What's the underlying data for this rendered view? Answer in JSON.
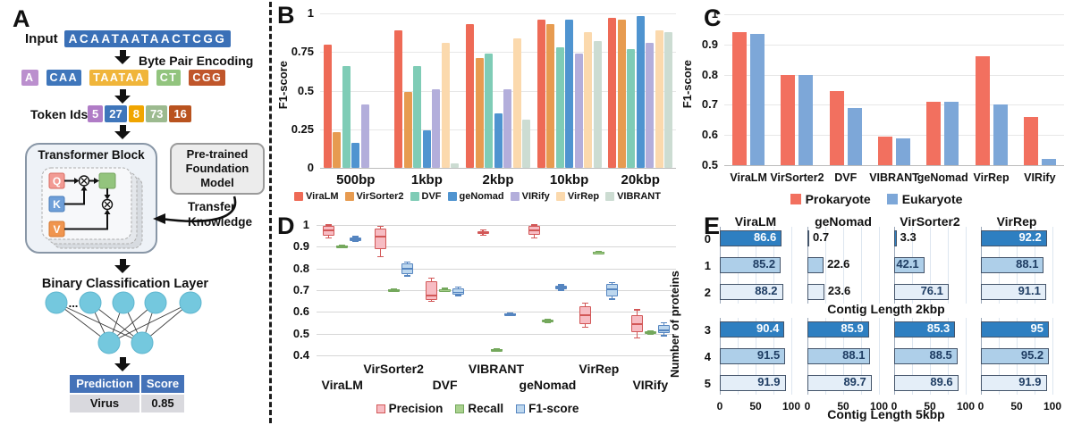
{
  "figure": {
    "background": "#ffffff",
    "panels": {
      "a": "A",
      "b": "B",
      "c": "C",
      "d": "D",
      "e": "E"
    }
  },
  "panelA": {
    "input_label": "Input",
    "input_sequence": "ACAATAATAACTCGG",
    "input_box_color": "#3a70b7",
    "bpe_label": "Byte Pair Encoding",
    "tokens": [
      {
        "text": "A",
        "color": "#bb8fce"
      },
      {
        "text": "CAA",
        "color": "#3f76bb"
      },
      {
        "text": "TAATAA",
        "color": "#f0b53a"
      },
      {
        "text": "CT",
        "color": "#92c47e"
      },
      {
        "text": "CGG",
        "color": "#c0562b"
      }
    ],
    "token_ids_label": "Token Ids",
    "token_ids": [
      {
        "text": "5",
        "color": "#b07cc6"
      },
      {
        "text": "27",
        "color": "#3f76bb"
      },
      {
        "text": "8",
        "color": "#f0a500"
      },
      {
        "text": "73",
        "color": "#9cba8f"
      },
      {
        "text": "16",
        "color": "#b9531f"
      }
    ],
    "transformer_title": "Transformer Block",
    "qkv": [
      {
        "text": "Q",
        "color": "#f29b94",
        "stroke": "#d96c62"
      },
      {
        "text": "K",
        "color": "#6f9fd8",
        "stroke": "#4a7ebb"
      },
      {
        "text": "V",
        "color": "#f0954f",
        "stroke": "#d47830"
      }
    ],
    "attention_node_color": "#93c47d",
    "attention_node_stroke": "#76a35e",
    "pretrained_label_lines": [
      "Pre-trained",
      "Foundation",
      "Model"
    ],
    "transfer_label_lines": [
      "Transfer",
      "Knowledge"
    ],
    "classifier_label": "Binary Classification Layer",
    "ellipsis": "...",
    "neuron_color": "#74c8de",
    "neuron_stroke": "#5fb6cf",
    "prediction_table": {
      "headers": [
        "Prediction",
        "Score"
      ],
      "row": [
        "Virus",
        "0.85"
      ],
      "header_color": "#4472b8",
      "row_color": "#d9d9de"
    }
  },
  "chart_data": [
    {
      "id": "panelB",
      "type": "bar",
      "title": "",
      "xlabel": "",
      "ylabel": "F1-score",
      "ylim": [
        0,
        1
      ],
      "yticks": [
        1,
        0.75,
        0.5,
        0.25,
        0
      ],
      "grid": true,
      "legend_position": "bottom",
      "categories": [
        "500bp",
        "1kbp",
        "2kbp",
        "10kbp",
        "20kbp"
      ],
      "series": [
        {
          "name": "ViraLM",
          "color": "#ee6a56",
          "values": [
            0.8,
            0.89,
            0.93,
            0.96,
            0.97
          ]
        },
        {
          "name": "VirSorter2",
          "color": "#e79b50",
          "values": [
            0.23,
            0.49,
            0.71,
            0.93,
            0.96
          ]
        },
        {
          "name": "DVF",
          "color": "#7fccb6",
          "values": [
            0.66,
            0.66,
            0.74,
            0.78,
            0.77
          ]
        },
        {
          "name": "geNomad",
          "color": "#4f94d0",
          "values": [
            0.16,
            0.24,
            0.35,
            0.96,
            0.98
          ]
        },
        {
          "name": "VIRify",
          "color": "#b3aedb",
          "values": [
            0.41,
            0.51,
            0.51,
            0.74,
            0.81
          ]
        },
        {
          "name": "VirRep",
          "color": "#fbd9ad",
          "values": [
            0.0,
            0.81,
            0.84,
            0.88,
            0.89
          ]
        },
        {
          "name": "VIBRANT",
          "color": "#ccdcd2",
          "values": [
            0.0,
            0.03,
            0.31,
            0.82,
            0.88
          ]
        }
      ]
    },
    {
      "id": "panelC",
      "type": "bar",
      "title": "",
      "xlabel": "",
      "ylabel": "F1-score",
      "ylim": [
        0.5,
        1
      ],
      "yticks": [
        1,
        0.9,
        0.8,
        0.7,
        0.6,
        0.5
      ],
      "grid": true,
      "legend_position": "bottom",
      "categories": [
        "ViraLM",
        "VirSorter2",
        "DVF",
        "VIBRANT",
        "geNomad",
        "VirRep",
        "VIRify"
      ],
      "series": [
        {
          "name": "Prokaryote",
          "color": "#f2705f",
          "values": [
            0.94,
            0.8,
            0.745,
            0.595,
            0.71,
            0.86,
            0.66
          ]
        },
        {
          "name": "Eukaryote",
          "color": "#7da7d8",
          "values": [
            0.935,
            0.8,
            0.69,
            0.59,
            0.71,
            0.7,
            0.52
          ]
        }
      ]
    },
    {
      "id": "panelD",
      "type": "box",
      "title": "",
      "ylim": [
        0.4,
        1
      ],
      "yticks": [
        1,
        0.9,
        0.8,
        0.7,
        0.6,
        0.5,
        0.4
      ],
      "grid": true,
      "legend_position": "bottom",
      "categories": [
        "ViraLM",
        "VirSorter2",
        "DVF",
        "VIBRANT",
        "geNomad",
        "VirRep",
        "VIRify"
      ],
      "series": [
        {
          "name": "Precision",
          "fill": "#f7bcc3",
          "stroke": "#d25757",
          "boxes": [
            [
              0.94,
              0.95,
              0.975,
              0.995,
              1.0
            ],
            [
              0.855,
              0.89,
              0.945,
              0.985,
              0.995
            ],
            [
              0.648,
              0.655,
              0.675,
              0.74,
              0.755
            ],
            [
              0.952,
              0.957,
              0.965,
              0.973,
              0.978
            ],
            [
              0.94,
              0.955,
              0.975,
              0.995,
              1.0
            ],
            [
              0.53,
              0.545,
              0.585,
              0.625,
              0.64
            ],
            [
              0.48,
              0.508,
              0.545,
              0.585,
              0.61
            ]
          ]
        },
        {
          "name": "Recall",
          "fill": "#a9d18e",
          "stroke": "#74a85c",
          "boxes": [
            [
              0.895,
              0.897,
              0.9,
              0.904,
              0.906
            ],
            [
              0.695,
              0.697,
              0.7,
              0.703,
              0.705
            ],
            [
              0.696,
              0.698,
              0.702,
              0.706,
              0.708
            ],
            [
              0.418,
              0.421,
              0.425,
              0.429,
              0.432
            ],
            [
              0.55,
              0.553,
              0.558,
              0.563,
              0.566
            ],
            [
              0.87,
              0.872,
              0.875,
              0.878,
              0.88
            ],
            [
              0.497,
              0.5,
              0.505,
              0.51,
              0.513
            ]
          ]
        },
        {
          "name": "F1-score",
          "fill": "#bdd7ee",
          "stroke": "#5585c0",
          "boxes": [
            [
              0.924,
              0.928,
              0.935,
              0.942,
              0.946
            ],
            [
              0.765,
              0.775,
              0.8,
              0.825,
              0.83
            ],
            [
              0.675,
              0.68,
              0.69,
              0.71,
              0.715
            ],
            [
              0.585,
              0.587,
              0.59,
              0.593,
              0.595
            ],
            [
              0.7,
              0.705,
              0.712,
              0.72,
              0.725
            ],
            [
              0.66,
              0.67,
              0.705,
              0.73,
              0.735
            ],
            [
              0.49,
              0.503,
              0.515,
              0.538,
              0.55
            ]
          ]
        }
      ]
    },
    {
      "id": "panelE",
      "type": "hbar-grid",
      "row_axis_label": "Number of proteins",
      "xlim": [
        0,
        100
      ],
      "xticks": [
        0,
        50,
        100
      ],
      "bar_colors": [
        "#2e7fc1",
        "#aecfe9",
        "#e4eef8"
      ],
      "bar_border": "#44546a",
      "label_color_dark_bar": "#ffffff",
      "label_color_light_bar": "#1f3d63",
      "columns": [
        {
          "name": "ViraLM",
          "contig_2kbp": [
            86.6,
            85.2,
            88.2
          ],
          "contig_5kbp": [
            90.4,
            91.5,
            91.9
          ]
        },
        {
          "name": "geNomad",
          "contig_2kbp": [
            0.7,
            22.6,
            23.6
          ],
          "contig_5kbp": [
            85.9,
            88.1,
            89.7
          ]
        },
        {
          "name": "VirSorter2",
          "contig_2kbp": [
            3.3,
            42.1,
            76.1
          ],
          "contig_5kbp": [
            85.3,
            88.5,
            89.6
          ]
        },
        {
          "name": "VirRep",
          "contig_2kbp": [
            92.2,
            88.1,
            91.1
          ],
          "contig_5kbp": [
            95,
            95.2,
            91.9
          ]
        }
      ],
      "groups": [
        {
          "caption": "Contig Length 2kbp",
          "rows": [
            "0",
            "1",
            "2"
          ],
          "key": "contig_2kbp"
        },
        {
          "caption": "Contig Length 5kbp",
          "rows": [
            "3",
            "4",
            "5"
          ],
          "key": "contig_5kbp"
        }
      ]
    }
  ]
}
